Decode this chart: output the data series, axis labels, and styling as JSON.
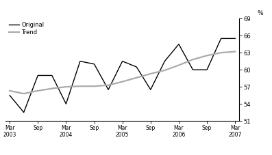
{
  "original_x": [
    0,
    1,
    2,
    3,
    4,
    5,
    6,
    7,
    8,
    9,
    10,
    11,
    12,
    13,
    14,
    15,
    16
  ],
  "original_y": [
    55.5,
    52.5,
    59.0,
    59.0,
    54.0,
    61.5,
    61.0,
    56.5,
    61.5,
    60.5,
    56.5,
    61.5,
    64.5,
    60.0,
    60.0,
    65.5,
    65.5
  ],
  "trend_x": [
    0,
    1,
    2,
    3,
    4,
    5,
    6,
    7,
    8,
    9,
    10,
    11,
    12,
    13,
    14,
    15,
    16
  ],
  "trend_y": [
    56.3,
    55.8,
    56.3,
    56.7,
    57.0,
    57.1,
    57.1,
    57.3,
    57.9,
    58.6,
    59.3,
    59.9,
    60.8,
    61.8,
    62.5,
    63.0,
    63.2
  ],
  "original_color": "#000000",
  "trend_color": "#aaaaaa",
  "ylim": [
    51,
    69
  ],
  "yticks": [
    51,
    54,
    57,
    60,
    63,
    66,
    69
  ],
  "xtick_pos": [
    0,
    2,
    4,
    6,
    8,
    10,
    12,
    14,
    16
  ],
  "xtick_labels": [
    "Mar\n2003",
    "Sep",
    "Mar\n2004",
    "Sep",
    "Mar\n2005",
    "Sep",
    "Mar\n2006",
    "Sep",
    "Mar\n2007"
  ],
  "percent_label": "%",
  "legend_original": "Original",
  "legend_trend": "Trend",
  "background_color": "#ffffff",
  "linewidth_original": 1.0,
  "linewidth_trend": 1.6,
  "xlim": [
    -0.3,
    16.3
  ]
}
